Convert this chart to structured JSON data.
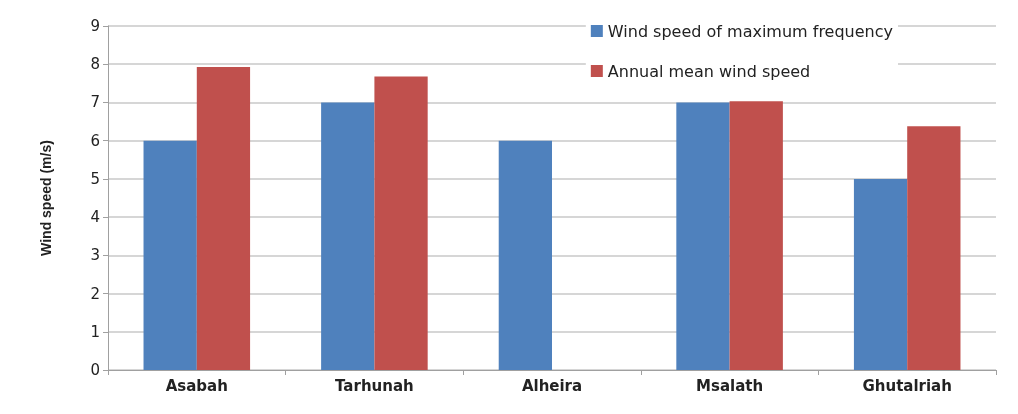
{
  "chart_data": {
    "type": "bar",
    "ylabel": "Wind speed (m/s)",
    "categories": [
      "Asabah",
      "Tarhunah",
      "Alheira",
      "Msalath",
      "Ghutalriah"
    ],
    "series": [
      {
        "name": "Wind speed of maximum frequency",
        "color": "#4f81bd",
        "values": [
          6,
          7,
          6,
          7,
          5
        ]
      },
      {
        "name": "Annual mean wind speed",
        "color": "#c0504d",
        "values": [
          7.93,
          7.68,
          null,
          7.03,
          6.38
        ]
      }
    ],
    "ylim": [
      0,
      9
    ],
    "yticks": [
      0,
      1,
      2,
      3,
      4,
      5,
      6,
      7,
      8,
      9
    ],
    "grid": "y",
    "legend": "top right"
  }
}
